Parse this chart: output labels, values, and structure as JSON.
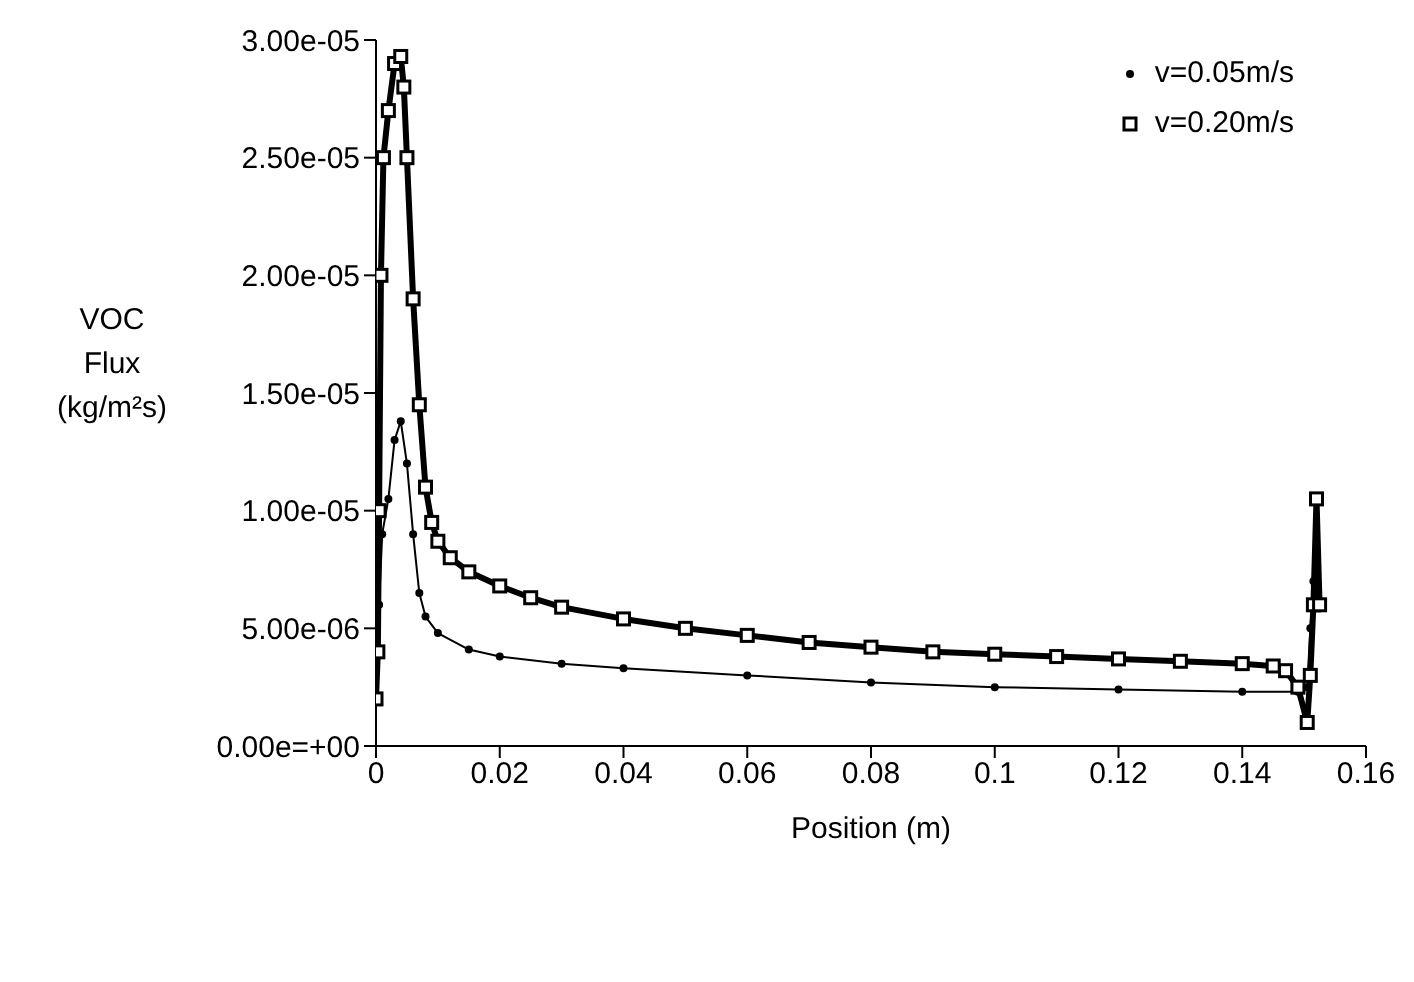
{
  "chart_data": {
    "type": "line",
    "xlabel": "Position (m)",
    "ylabel": "VOC Flux (kg/m²s)",
    "xlim": [
      0,
      0.16
    ],
    "xticks": [
      0,
      0.02,
      0.04,
      0.06,
      0.08,
      0.1,
      0.12,
      0.14,
      0.16
    ],
    "ylim": [
      0,
      3e-05
    ],
    "yticks": [
      {
        "value": 0,
        "label": "0.00e=+00"
      },
      {
        "value": 5e-06,
        "label": "5.00e-06"
      },
      {
        "value": 1e-05,
        "label": "1.00e-05"
      },
      {
        "value": 1.5e-05,
        "label": "1.50e-05"
      },
      {
        "value": 2e-05,
        "label": "2.00e-05"
      },
      {
        "value": 2.5e-05,
        "label": "2.50e-05"
      },
      {
        "value": 3e-05,
        "label": "3.00e-05"
      }
    ],
    "grid": false,
    "legend": "top right",
    "series": [
      {
        "name": "v=0.05m/s",
        "color": "#000000",
        "marker": "circle",
        "x": [
          0.0005,
          0.001,
          0.002,
          0.003,
          0.004,
          0.005,
          0.006,
          0.007,
          0.008,
          0.01,
          0.015,
          0.02,
          0.03,
          0.04,
          0.06,
          0.08,
          0.1,
          0.12,
          0.14,
          0.149,
          0.1505,
          0.151,
          0.1515
        ],
        "values": [
          6e-06,
          9e-06,
          1.05e-05,
          1.3e-05,
          1.38e-05,
          1.2e-05,
          9e-06,
          6.5e-06,
          5.5e-06,
          4.8e-06,
          4.1e-06,
          3.8e-06,
          3.5e-06,
          3.3e-06,
          3e-06,
          2.7e-06,
          2.5e-06,
          2.4e-06,
          2.3e-06,
          2.3e-06,
          2.5e-06,
          5e-06,
          7e-06
        ]
      },
      {
        "name": "v=0.20m/s",
        "color": "#000000",
        "marker": "square",
        "x": [
          0,
          0.0003,
          0.0005,
          0.0008,
          0.0012,
          0.002,
          0.003,
          0.004,
          0.0045,
          0.005,
          0.006,
          0.007,
          0.008,
          0.009,
          0.01,
          0.012,
          0.015,
          0.02,
          0.025,
          0.03,
          0.04,
          0.05,
          0.06,
          0.07,
          0.08,
          0.09,
          0.1,
          0.11,
          0.12,
          0.13,
          0.14,
          0.145,
          0.147,
          0.149,
          0.1505,
          0.151,
          0.1515,
          0.152,
          0.1525
        ],
        "values": [
          2e-06,
          4e-06,
          1e-05,
          2e-05,
          2.5e-05,
          2.7e-05,
          2.9e-05,
          2.93e-05,
          2.8e-05,
          2.5e-05,
          1.9e-05,
          1.45e-05,
          1.1e-05,
          9.5e-06,
          8.7e-06,
          8e-06,
          7.4e-06,
          6.8e-06,
          6.3e-06,
          5.9e-06,
          5.4e-06,
          5e-06,
          4.7e-06,
          4.4e-06,
          4.2e-06,
          4e-06,
          3.9e-06,
          3.8e-06,
          3.7e-06,
          3.6e-06,
          3.5e-06,
          3.4e-06,
          3.2e-06,
          2.5e-06,
          1e-06,
          3e-06,
          6e-06,
          1.05e-05,
          6e-06
        ]
      }
    ]
  }
}
